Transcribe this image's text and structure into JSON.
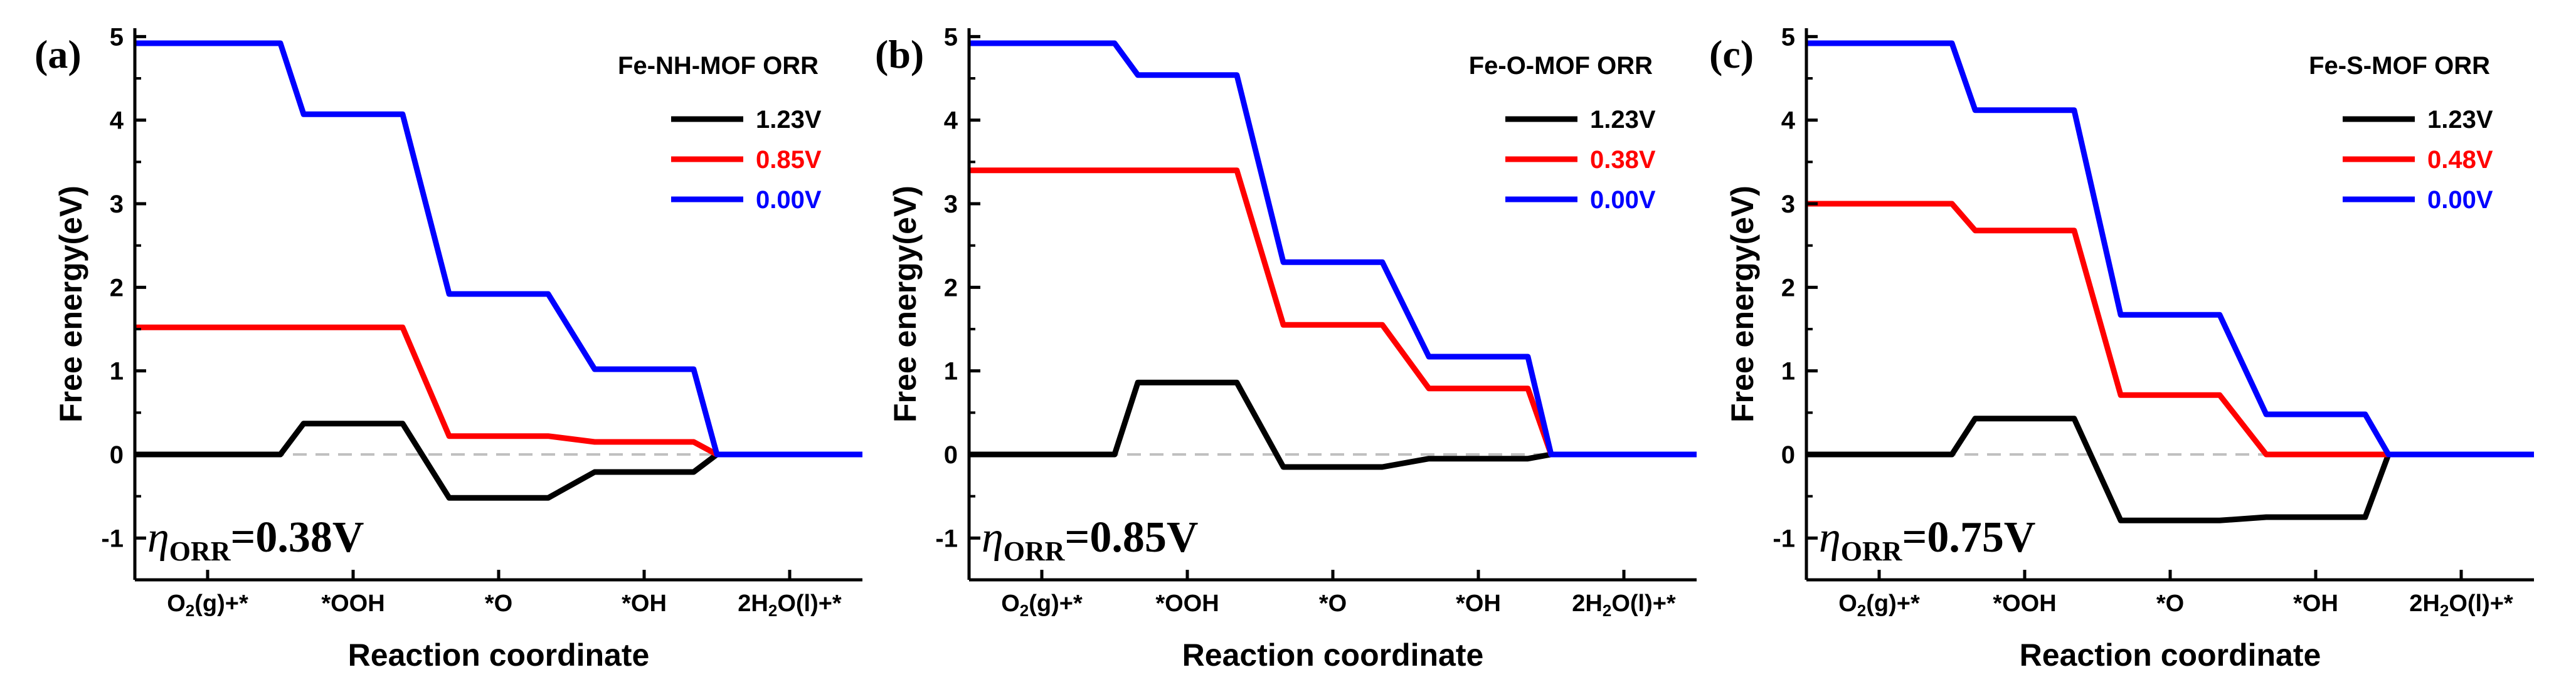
{
  "shared": {
    "xlabel": "Reaction coordinate",
    "ylabel": "Free energy(eV)",
    "categories": [
      "O2(g)+*",
      "*OOH",
      "*O",
      "*OH",
      "2H2O(l)+*"
    ],
    "category_display": [
      {
        "main": "O",
        "sub": "2",
        "rest": "(g)+*"
      },
      {
        "main": "*OOH",
        "sub": "",
        "rest": ""
      },
      {
        "main": "*O",
        "sub": "",
        "rest": ""
      },
      {
        "main": "*OH",
        "sub": "",
        "rest": ""
      },
      {
        "main": "2H",
        "sub": "2",
        "rest": "O(l)+*"
      }
    ],
    "ylim": [
      -1.5,
      5.1
    ],
    "yticks": [
      -1,
      0,
      1,
      2,
      3,
      4,
      5
    ],
    "reference_line": 0
  },
  "chart_data": [
    {
      "type": "line",
      "panel_label": "(a)",
      "title": "Fe-NH-MOF  ORR",
      "annotation": {
        "symbol": "η",
        "subscript": "ORR",
        "value": "=0.38V"
      },
      "xlabel": "Reaction coordinate",
      "ylabel": "Free energy(eV)",
      "categories": [
        "O2(g)+*",
        "*OOH",
        "*O",
        "*OH",
        "2H2O(l)+*"
      ],
      "series": [
        {
          "name": "1.23V",
          "color": "#000000",
          "values": [
            0.0,
            0.37,
            -0.52,
            -0.21,
            0.0
          ]
        },
        {
          "name": "0.85V",
          "color": "#ff0000",
          "values": [
            1.52,
            1.52,
            0.22,
            0.15,
            0.0
          ]
        },
        {
          "name": "0.00V",
          "color": "#0000ff",
          "values": [
            4.92,
            4.07,
            1.92,
            1.02,
            0.0
          ]
        }
      ]
    },
    {
      "type": "line",
      "panel_label": "(b)",
      "title": "Fe-O-MOF  ORR",
      "annotation": {
        "symbol": "η",
        "subscript": "ORR",
        "value": "=0.85V"
      },
      "xlabel": "Reaction coordinate",
      "ylabel": "Free energy(eV)",
      "categories": [
        "O2(g)+*",
        "*OOH",
        "*O",
        "*OH",
        "2H2O(l)+*"
      ],
      "series": [
        {
          "name": "1.23V",
          "color": "#000000",
          "values": [
            0.0,
            0.86,
            -0.15,
            -0.05,
            0.0
          ]
        },
        {
          "name": "0.38V",
          "color": "#ff0000",
          "values": [
            3.4,
            3.4,
            1.55,
            0.79,
            0.0
          ]
        },
        {
          "name": "0.00V",
          "color": "#0000ff",
          "values": [
            4.92,
            4.54,
            2.3,
            1.17,
            0.0
          ]
        }
      ]
    },
    {
      "type": "line",
      "panel_label": "(c)",
      "title": "Fe-S-MOF  ORR",
      "annotation": {
        "symbol": "η",
        "subscript": "ORR",
        "value": "=0.75V"
      },
      "xlabel": "Reaction coordinate",
      "ylabel": "Free energy(eV)",
      "categories": [
        "O2(g)+*",
        "*OOH",
        "*O",
        "*OH",
        "2H2O(l)+*"
      ],
      "series": [
        {
          "name": "1.23V",
          "color": "#000000",
          "values": [
            0.0,
            0.43,
            -0.79,
            -0.75,
            0.0
          ]
        },
        {
          "name": "0.48V",
          "color": "#ff0000",
          "values": [
            3.0,
            2.68,
            0.71,
            0.0,
            0.0
          ]
        },
        {
          "name": "0.00V",
          "color": "#0000ff",
          "values": [
            4.92,
            4.12,
            1.67,
            0.48,
            0.0
          ]
        }
      ]
    }
  ]
}
